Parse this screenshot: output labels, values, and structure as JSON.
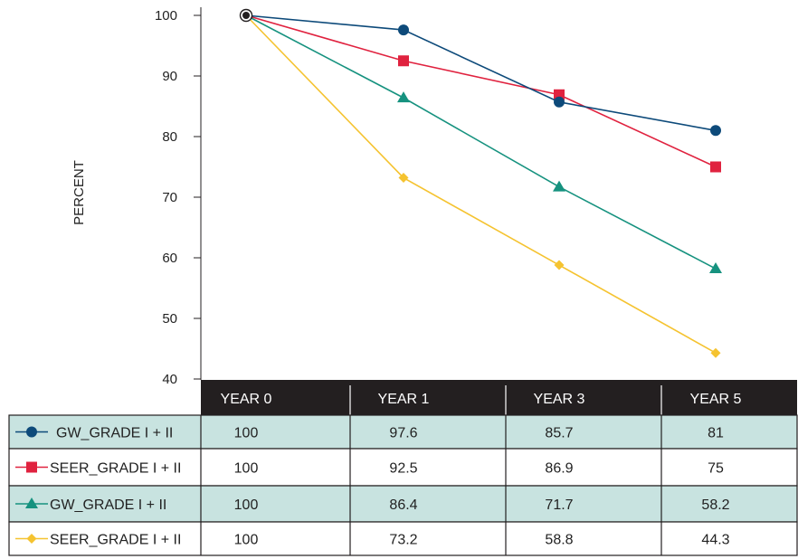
{
  "chart_data": {
    "type": "line",
    "categories": [
      "YEAR 0",
      "YEAR 1",
      "YEAR 3",
      "YEAR 5"
    ],
    "ylabel": "PERCENT",
    "ylim": [
      40,
      100
    ],
    "yticks": [
      40,
      50,
      60,
      70,
      80,
      90,
      100
    ],
    "grid": false,
    "legend_placement": "data table below chart",
    "series": [
      {
        "name": "GW_GRADE I + II",
        "values": [
          100,
          97.6,
          85.7,
          81
        ],
        "color": "#0d4a7a",
        "marker": "circle",
        "row_bg": "#c8e3e0"
      },
      {
        "name": "SEER_GRADE I + II",
        "values": [
          100,
          92.5,
          86.9,
          75
        ],
        "color": "#e0223f",
        "marker": "square",
        "row_bg": "#ffffff"
      },
      {
        "name": "GW_GRADE  I + II",
        "values": [
          100,
          86.4,
          71.7,
          58.2
        ],
        "color": "#16927f",
        "marker": "triangle",
        "row_bg": "#c8e3e0"
      },
      {
        "name": "SEER_GRADE I + II",
        "values": [
          100,
          73.2,
          58.8,
          44.3
        ],
        "color": "#f5c330",
        "marker": "diamond",
        "row_bg": "#ffffff"
      }
    ],
    "table_values": [
      [
        "100",
        "97.6",
        "85.7",
        "81"
      ],
      [
        "100",
        "92.5",
        "86.9",
        "75"
      ],
      [
        "100",
        "86.4",
        "71.7",
        "58.2"
      ],
      [
        "100",
        "73.2",
        "58.8",
        "44.3"
      ]
    ],
    "header_bg": "#231f20"
  }
}
